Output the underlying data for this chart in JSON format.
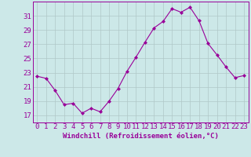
{
  "x": [
    0,
    1,
    2,
    3,
    4,
    5,
    6,
    7,
    8,
    9,
    10,
    11,
    12,
    13,
    14,
    15,
    16,
    17,
    18,
    19,
    20,
    21,
    22,
    23
  ],
  "y": [
    22.5,
    22.2,
    20.5,
    18.5,
    18.7,
    17.3,
    18.0,
    17.5,
    19.0,
    20.8,
    23.2,
    25.2,
    27.3,
    29.3,
    30.2,
    32.0,
    31.5,
    32.2,
    30.3,
    27.1,
    25.5,
    23.8,
    22.3,
    22.6
  ],
  "line_color": "#990099",
  "marker": "D",
  "marker_size": 2,
  "bg_color": "#cce8e8",
  "grid_color": "#b0c8c8",
  "xlabel": "Windchill (Refroidissement éolien,°C)",
  "xlabel_fontsize": 6.5,
  "tick_fontsize": 6.5,
  "ylim": [
    16,
    33
  ],
  "yticks": [
    17,
    19,
    21,
    23,
    25,
    27,
    29,
    31
  ],
  "xticks": [
    0,
    1,
    2,
    3,
    4,
    5,
    6,
    7,
    8,
    9,
    10,
    11,
    12,
    13,
    14,
    15,
    16,
    17,
    18,
    19,
    20,
    21,
    22,
    23
  ]
}
